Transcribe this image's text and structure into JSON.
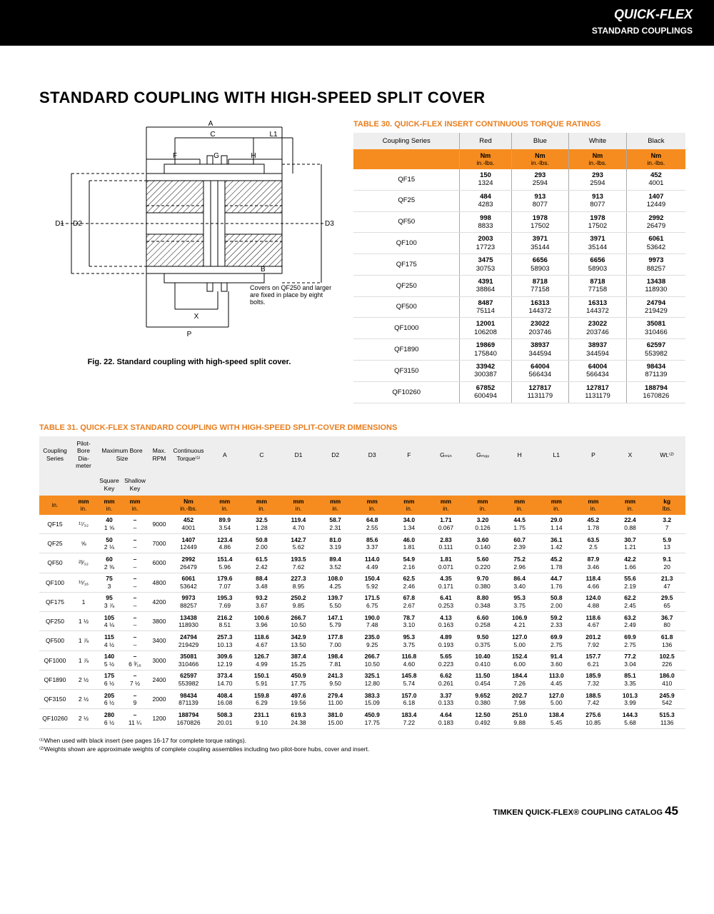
{
  "header": {
    "line1": "QUICK-FLEX",
    "line2": "STANDARD COUPLINGS"
  },
  "title": "STANDARD COUPLING WITH HIGH-SPEED SPLIT COVER",
  "fig": {
    "caption": "Fig. 22. Standard coupling with high-speed split cover.",
    "labels": {
      "A": "A",
      "C": "C",
      "L1": "L1",
      "F": "F",
      "G": "G",
      "H": "H",
      "B": "B",
      "D1": "D1",
      "D2": "D2",
      "D3": "D3",
      "X": "X",
      "P": "P"
    },
    "note": "Covers on QF250 and larger are fixed in place by eight bolts."
  },
  "table30": {
    "caption": "TABLE 30. QUICK-FLEX INSERT CONTINUOUS TORQUE RATINGS",
    "head1": [
      "Coupling Series",
      "Red",
      "Blue",
      "White",
      "Black"
    ],
    "unitTop": "Nm",
    "unitBot": "in.-lbs.",
    "rows": [
      {
        "s": "QF15",
        "r": [
          "150",
          "1324"
        ],
        "b": [
          "293",
          "2594"
        ],
        "w": [
          "293",
          "2594"
        ],
        "k": [
          "452",
          "4001"
        ]
      },
      {
        "s": "QF25",
        "r": [
          "484",
          "4283"
        ],
        "b": [
          "913",
          "8077"
        ],
        "w": [
          "913",
          "8077"
        ],
        "k": [
          "1407",
          "12449"
        ]
      },
      {
        "s": "QF50",
        "r": [
          "998",
          "8833"
        ],
        "b": [
          "1978",
          "17502"
        ],
        "w": [
          "1978",
          "17502"
        ],
        "k": [
          "2992",
          "26479"
        ]
      },
      {
        "s": "QF100",
        "r": [
          "2003",
          "17723"
        ],
        "b": [
          "3971",
          "35144"
        ],
        "w": [
          "3971",
          "35144"
        ],
        "k": [
          "6061",
          "53642"
        ]
      },
      {
        "s": "QF175",
        "r": [
          "3475",
          "30753"
        ],
        "b": [
          "6656",
          "58903"
        ],
        "w": [
          "6656",
          "58903"
        ],
        "k": [
          "9973",
          "88257"
        ]
      },
      {
        "s": "QF250",
        "r": [
          "4391",
          "38864"
        ],
        "b": [
          "8718",
          "77158"
        ],
        "w": [
          "8718",
          "77158"
        ],
        "k": [
          "13438",
          "118930"
        ]
      },
      {
        "s": "QF500",
        "r": [
          "8487",
          "75114"
        ],
        "b": [
          "16313",
          "144372"
        ],
        "w": [
          "16313",
          "144372"
        ],
        "k": [
          "24794",
          "219429"
        ]
      },
      {
        "s": "QF1000",
        "r": [
          "12001",
          "106208"
        ],
        "b": [
          "23022",
          "203746"
        ],
        "w": [
          "23022",
          "203746"
        ],
        "k": [
          "35081",
          "310466"
        ]
      },
      {
        "s": "QF1890",
        "r": [
          "19869",
          "175840"
        ],
        "b": [
          "38937",
          "344594"
        ],
        "w": [
          "38937",
          "344594"
        ],
        "k": [
          "62597",
          "553982"
        ]
      },
      {
        "s": "QF3150",
        "r": [
          "33942",
          "300387"
        ],
        "b": [
          "64004",
          "566434"
        ],
        "w": [
          "64004",
          "566434"
        ],
        "k": [
          "98434",
          "871139"
        ]
      },
      {
        "s": "QF10260",
        "r": [
          "67852",
          "600494"
        ],
        "b": [
          "127817",
          "1131179"
        ],
        "w": [
          "127817",
          "1131179"
        ],
        "k": [
          "188794",
          "1670826"
        ]
      }
    ]
  },
  "table31": {
    "caption": "TABLE 31. QUICK-FLEX STANDARD COUPLING WITH HIGH-SPEED SPLIT-COVER DIMENSIONS",
    "h1": [
      "Coupling Series",
      "Pilot-Bore Dia-meter",
      "Maximum Bore Size",
      "",
      "Max. RPM",
      "Continuous Torque⁽¹⁾",
      "A",
      "C",
      "D1",
      "D2",
      "D3",
      "F",
      "Gₘᵢₙ",
      "Gₘₐₓ",
      "H",
      "L1",
      "P",
      "X",
      "Wt.⁽²⁾"
    ],
    "sub": [
      "",
      "",
      "Square Key",
      "Shallow Key",
      "",
      "",
      "",
      "",
      "",
      "",
      "",
      "",
      "",
      "",
      "",
      "",
      "",
      "",
      ""
    ],
    "units": [
      {
        "t": "",
        "b": "in."
      },
      {
        "t": "mm",
        "b": "in."
      },
      {
        "t": "mm",
        "b": "in."
      },
      {
        "t": "mm",
        "b": "in."
      },
      {
        "t": "",
        "b": ""
      },
      {
        "t": "Nm",
        "b": "in.-lbs."
      },
      {
        "t": "mm",
        "b": "in."
      },
      {
        "t": "mm",
        "b": "in."
      },
      {
        "t": "mm",
        "b": "in."
      },
      {
        "t": "mm",
        "b": "in."
      },
      {
        "t": "mm",
        "b": "in."
      },
      {
        "t": "mm",
        "b": "in."
      },
      {
        "t": "mm",
        "b": "in."
      },
      {
        "t": "mm",
        "b": "in."
      },
      {
        "t": "mm",
        "b": "in."
      },
      {
        "t": "mm",
        "b": "in."
      },
      {
        "t": "mm",
        "b": "in."
      },
      {
        "t": "mm",
        "b": "in."
      },
      {
        "t": "kg",
        "b": "lbs."
      }
    ],
    "rows": [
      [
        "QF15",
        "¹⁷⁄₃₂",
        "40 / 1 ⅝",
        "– / –",
        "9000",
        "452 / 4001",
        "89.9 / 3.54",
        "32.5 / 1.28",
        "119.4 / 4.70",
        "58.7 / 2.31",
        "64.8 / 2.55",
        "34.0 / 1.34",
        "1.71 / 0.067",
        "3.20 / 0.126",
        "44.5 / 1.75",
        "29.0 / 1.14",
        "45.2 / 1.78",
        "22.4 / 0.88",
        "3.2 / 7"
      ],
      [
        "QF25",
        "⅝",
        "50 / 2 ⅛",
        "– / –",
        "7000",
        "1407 / 12449",
        "123.4 / 4.86",
        "50.8 / 2.00",
        "142.7 / 5.62",
        "81.0 / 3.19",
        "85.6 / 3.37",
        "46.0 / 1.81",
        "2.83 / 0.111",
        "3.60 / 0.140",
        "60.7 / 2.39",
        "36.1 / 1.42",
        "63.5 / 2.5",
        "30.7 / 1.21",
        "5.9 / 13"
      ],
      [
        "QF50",
        "²³⁄₃₂",
        "60 / 2 ⅜",
        "– / –",
        "6000",
        "2992 / 26479",
        "151.4 / 5.96",
        "61.5 / 2.42",
        "193.5 / 7.62",
        "89.4 / 3.52",
        "114.0 / 4.49",
        "54.9 / 2.16",
        "1.81 / 0.071",
        "5.60 / 0.220",
        "75.2 / 2.96",
        "45.2 / 1.78",
        "87.9 / 3.46",
        "42.2 / 1.66",
        "9.1 / 20"
      ],
      [
        "QF100",
        "¹⁵⁄₁₆",
        "75 / 3",
        "– / –",
        "4800",
        "6061 / 53642",
        "179.6 / 7.07",
        "88.4 / 3.48",
        "227.3 / 8.95",
        "108.0 / 4.25",
        "150.4 / 5.92",
        "62.5 / 2.46",
        "4.35 / 0.171",
        "9.70 / 0.380",
        "86.4 / 3.40",
        "44.7 / 1.76",
        "118.4 / 4.66",
        "55.6 / 2.19",
        "21.3 / 47"
      ],
      [
        "QF175",
        "1",
        "95 / 3 ⅞",
        "– / –",
        "4200",
        "9973 / 88257",
        "195.3 / 7.69",
        "93.2 / 3.67",
        "250.2 / 9.85",
        "139.7 / 5.50",
        "171.5 / 6.75",
        "67.8 / 2.67",
        "6.41 / 0.253",
        "8.80 / 0.348",
        "95.3 / 3.75",
        "50.8 / 2.00",
        "124.0 / 4.88",
        "62.2 / 2.45",
        "29.5 / 65"
      ],
      [
        "QF250",
        "1 ½",
        "105 / 4 ⅛",
        "– / –",
        "3800",
        "13438 / 118930",
        "216.2 / 8.51",
        "100.6 / 3.96",
        "266.7 / 10.50",
        "147.1 / 5.79",
        "190.0 / 7.48",
        "78.7 / 3.10",
        "4.13 / 0.163",
        "6.60 / 0.258",
        "106.9 / 4.21",
        "59.2 / 2.33",
        "118.6 / 4.67",
        "63.2 / 2.49",
        "36.7 / 80"
      ],
      [
        "QF500",
        "1 ⅞",
        "115 / 4 ½",
        "– / –",
        "3400",
        "24794 / 219429",
        "257.3 / 10.13",
        "118.6 / 4.67",
        "342.9 / 13.50",
        "177.8 / 7.00",
        "235.0 / 9.25",
        "95.3 / 3.75",
        "4.89 / 0.193",
        "9.50 / 0.375",
        "127.0 / 5.00",
        "69.9 / 2.75",
        "201.2 / 7.92",
        "69.9 / 2.75",
        "61.8 / 136"
      ],
      [
        "QF1000",
        "1 ⅞",
        "140 / 5 ½",
        "– / 6 ³⁄₁₆",
        "3000",
        "35081 / 310466",
        "309.6 / 12.19",
        "126.7 / 4.99",
        "387.4 / 15.25",
        "198.4 / 7.81",
        "266.7 / 10.50",
        "116.8 / 4.60",
        "5.65 / 0.223",
        "10.40 / 0.410",
        "152.4 / 6.00",
        "91.4 / 3.60",
        "157.7 / 6.21",
        "77.2 / 3.04",
        "102.5 / 226"
      ],
      [
        "QF1890",
        "2 ½",
        "175 / 6 ½",
        "– / 7 ½",
        "2400",
        "62597 / 553982",
        "373.4 / 14.70",
        "150.1 / 5.91",
        "450.9 / 17.75",
        "241.3 / 9.50",
        "325.1 / 12.80",
        "145.8 / 5.74",
        "6.62 / 0.261",
        "11.50 / 0.454",
        "184.4 / 7.26",
        "113.0 / 4.45",
        "185.9 / 7.32",
        "85.1 / 3.35",
        "186.0 / 410"
      ],
      [
        "QF3150",
        "2 ½",
        "205 / 6 ½",
        "– / 9",
        "2000",
        "98434 / 871139",
        "408.4 / 16.08",
        "159.8 / 6.29",
        "497.6 / 19.56",
        "279.4 / 11.00",
        "383.3 / 15.09",
        "157.0 / 6.18",
        "3.37 / 0.133",
        "9.652 / 0.380",
        "202.7 / 7.98",
        "127.0 / 5.00",
        "188.5 / 7.42",
        "101.3 / 3.99",
        "245.9 / 542"
      ],
      [
        "QF10260",
        "2 ½",
        "280 / 6 ½",
        "– / 11 ¼",
        "1200",
        "188794 / 1670826",
        "508.3 / 20.01",
        "231.1 / 9.10",
        "619.3 / 24.38",
        "381.0 / 15.00",
        "450.9 / 17.75",
        "183.4 / 7.22",
        "4.64 / 0.183",
        "12.50 / 0.492",
        "251.0 / 9.88",
        "138.4 / 5.45",
        "275.6 / 10.85",
        "144.3 / 5.68",
        "515.3 / 1136"
      ]
    ]
  },
  "footnotes": [
    "⁽¹⁾When used with black insert (see pages 16-17 for complete torque ratings).",
    "⁽²⁾Weights shown are approximate weights of complete coupling assemblies including two pilot-bore hubs, cover and insert."
  ],
  "footer": {
    "text": "TIMKEN QUICK-FLEX® COUPLING CATALOG",
    "page": "45"
  }
}
